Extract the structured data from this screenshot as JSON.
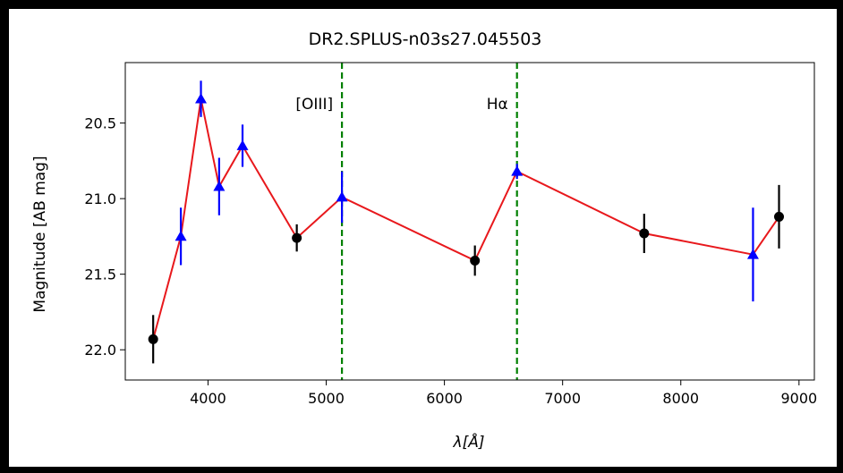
{
  "chart_data": {
    "type": "scatter",
    "title": "DR2.SPLUS-n03s27.045503",
    "xlabel": "λ[Å]",
    "ylabel": "Magnitude [AB mag]",
    "xlim": [
      3300,
      9130
    ],
    "ylim": [
      22.2,
      20.1
    ],
    "y_inverted": true,
    "x_ticks": [
      4000,
      5000,
      6000,
      7000,
      8000,
      9000
    ],
    "y_ticks": [
      20.5,
      21.0,
      21.5,
      22.0
    ],
    "x_tick_labels": [
      "4000",
      "5000",
      "6000",
      "7000",
      "8000",
      "9000"
    ],
    "y_tick_labels": [
      "20.5",
      "21.0",
      "21.5",
      "22.0"
    ],
    "grid": false,
    "line_color": "#e8181c",
    "broad_color": "#000000",
    "narrow_color": "#0000ff",
    "vline_color": "#008000",
    "points": [
      {
        "x": 3536,
        "y": 21.93,
        "yerr": 0.16,
        "band": "broad"
      },
      {
        "x": 3770,
        "y": 21.25,
        "yerr": 0.19,
        "band": "narrow"
      },
      {
        "x": 3940,
        "y": 20.34,
        "yerr": 0.12,
        "band": "narrow"
      },
      {
        "x": 4094,
        "y": 20.92,
        "yerr": 0.19,
        "band": "narrow"
      },
      {
        "x": 4292,
        "y": 20.65,
        "yerr": 0.14,
        "band": "narrow"
      },
      {
        "x": 4751,
        "y": 21.26,
        "yerr": 0.09,
        "band": "broad"
      },
      {
        "x": 5133,
        "y": 20.99,
        "yerr": 0.17,
        "band": "narrow"
      },
      {
        "x": 6258,
        "y": 21.41,
        "yerr": 0.1,
        "band": "broad"
      },
      {
        "x": 6614,
        "y": 20.82,
        "yerr": 0.05,
        "band": "narrow"
      },
      {
        "x": 7690,
        "y": 21.23,
        "yerr": 0.13,
        "band": "broad"
      },
      {
        "x": 8611,
        "y": 21.37,
        "yerr": 0.31,
        "band": "narrow"
      },
      {
        "x": 8831,
        "y": 21.12,
        "yerr": 0.21,
        "band": "broad"
      }
    ],
    "vlines": [
      {
        "x": 5133,
        "label": "[OIII]"
      },
      {
        "x": 6614,
        "label": "Hα"
      }
    ]
  }
}
